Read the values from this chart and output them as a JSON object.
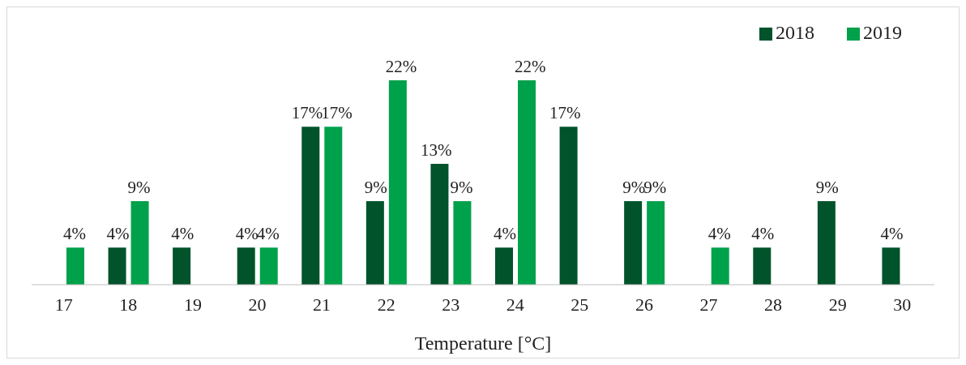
{
  "chart_data": {
    "type": "bar",
    "xlabel": "Temperature [°C]",
    "categories": [
      "17",
      "18",
      "19",
      "20",
      "21",
      "22",
      "23",
      "24",
      "25",
      "26",
      "27",
      "28",
      "29",
      "30"
    ],
    "series": [
      {
        "name": "2018",
        "color": "#00532a",
        "values": [
          null,
          4,
          4,
          4,
          17,
          9,
          13,
          4,
          17,
          9,
          null,
          4,
          9,
          4
        ],
        "value_labels": [
          null,
          "4%",
          "4%",
          "4%",
          "17%",
          "9%",
          "13%",
          "4%",
          "17%",
          "9%",
          null,
          "4%",
          "9%",
          "4%"
        ]
      },
      {
        "name": "2019",
        "color": "#00a14b",
        "values": [
          4,
          9,
          null,
          4,
          17,
          22,
          9,
          22,
          null,
          9,
          4,
          null,
          null,
          null
        ],
        "value_labels": [
          "4%",
          "9%",
          null,
          "4%",
          "17%",
          "22%",
          "9%",
          "22%",
          null,
          "9%",
          "4%",
          null,
          null,
          null
        ]
      }
    ],
    "grid": false,
    "legend": "top right"
  }
}
